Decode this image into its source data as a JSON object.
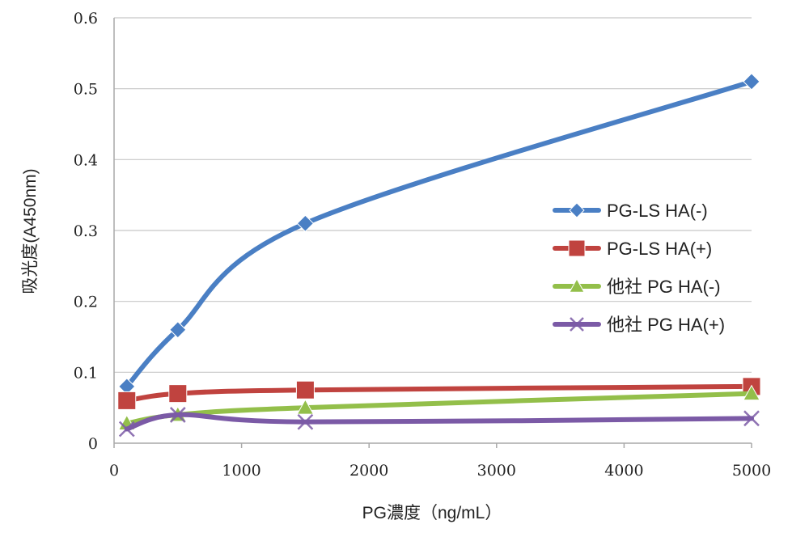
{
  "chart_data": {
    "type": "line",
    "title": "",
    "xlabel": "PG濃度（ng/mL）",
    "ylabel": "吸光度(A450nm)",
    "xlim": [
      0,
      5000
    ],
    "ylim": [
      0,
      0.6
    ],
    "xticks": [
      "0",
      "1000",
      "2000",
      "3000",
      "4000",
      "5000"
    ],
    "yticks": [
      "0",
      "0.1",
      "0.2",
      "0.3",
      "0.4",
      "0.5",
      "0.6"
    ],
    "grid": "horizontal",
    "smooth": true,
    "legend_position": "right",
    "series": [
      {
        "name": "PG-LS HA(-)",
        "color": "#4a7fc4",
        "marker": "diamond",
        "x": [
          100,
          500,
          1500,
          5000
        ],
        "y": [
          0.08,
          0.16,
          0.31,
          0.51
        ]
      },
      {
        "name": "PG-LS HA(+)",
        "color": "#c0433f",
        "marker": "square",
        "x": [
          100,
          500,
          1500,
          5000
        ],
        "y": [
          0.06,
          0.07,
          0.075,
          0.08
        ]
      },
      {
        "name": "他社 PG HA(-)",
        "color": "#93bf4a",
        "marker": "triangle",
        "x": [
          100,
          500,
          1500,
          5000
        ],
        "y": [
          0.028,
          0.04,
          0.05,
          0.07
        ]
      },
      {
        "name": "他社 PG HA(+)",
        "color": "#7b5aa6",
        "marker": "x",
        "x": [
          100,
          500,
          1500,
          5000
        ],
        "y": [
          0.02,
          0.04,
          0.03,
          0.035
        ]
      }
    ]
  }
}
